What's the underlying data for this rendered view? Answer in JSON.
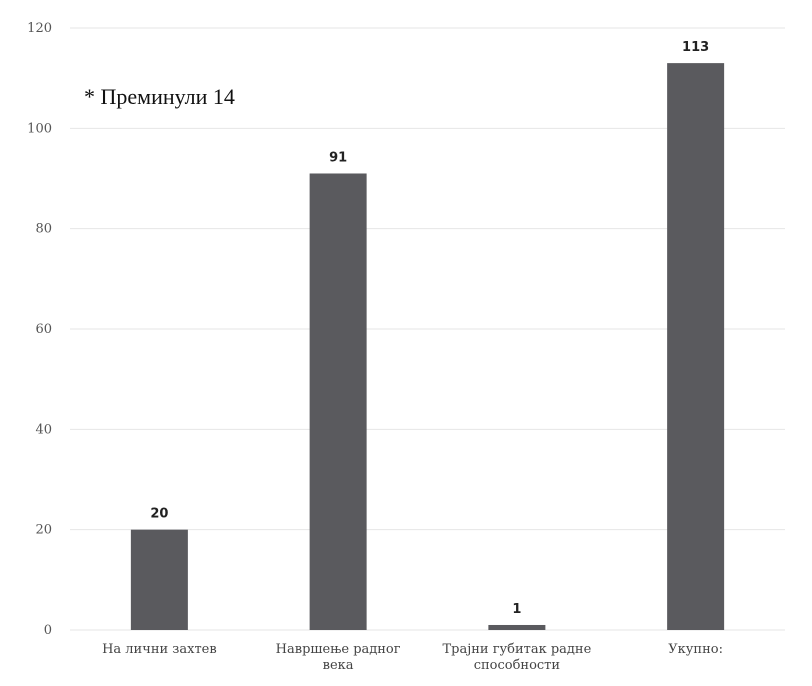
{
  "chart_data": {
    "type": "bar",
    "categories": [
      "На лични захтев",
      "Навршење радног века",
      "Трајни губитак радне способности",
      "Укупно:"
    ],
    "category_lines": [
      [
        "На лични захтев"
      ],
      [
        "Навршење радног",
        "века"
      ],
      [
        "Трајни губитак радне",
        "способности"
      ],
      [
        "Укупно:"
      ]
    ],
    "values": [
      20,
      91,
      1,
      113
    ],
    "data_labels": [
      "20",
      "91",
      "1",
      "113"
    ],
    "ylim": [
      0,
      120
    ],
    "yticks": [
      0,
      20,
      40,
      60,
      80,
      100,
      120
    ],
    "grid": true,
    "title": "",
    "xlabel": "",
    "ylabel": "",
    "annotation": "* Преминули 14",
    "bar_color": "#5a5a5e",
    "grid_color": "#e6e6e6"
  }
}
